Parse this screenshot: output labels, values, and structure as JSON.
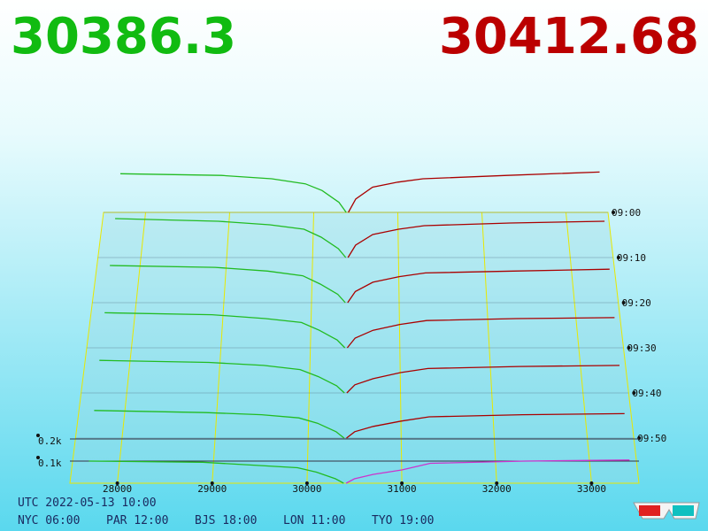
{
  "header": {
    "bid_price": "30386.3",
    "ask_price": "30412.68"
  },
  "chart_data": {
    "type": "depth3d",
    "xlim": [
      27500,
      33500
    ],
    "xticks": [
      28000,
      29000,
      30000,
      31000,
      32000,
      33000
    ],
    "tlim": [
      0,
      60
    ],
    "tticks": [
      {
        "value": 0,
        "label": "09:00"
      },
      {
        "value": 10,
        "label": "09:10"
      },
      {
        "value": 20,
        "label": "09:20"
      },
      {
        "value": 30,
        "label": "09:30"
      },
      {
        "value": 40,
        "label": "09:40"
      },
      {
        "value": 50,
        "label": "09:50"
      }
    ],
    "zticks": [
      {
        "value": 100,
        "label": "0.1k"
      },
      {
        "value": 200,
        "label": "0.2k"
      }
    ],
    "series": [
      {
        "time": 0,
        "color": "#22bb22",
        "x": [
          27700,
          28900,
          29500,
          29900,
          30100,
          30300,
          30386
        ],
        "values": [
          230,
          220,
          200,
          170,
          130,
          60,
          0
        ]
      },
      {
        "time": 10,
        "color": "#22bb22",
        "x": [
          27700,
          28900,
          29500,
          29900,
          30100,
          30300,
          30386
        ],
        "values": [
          220,
          205,
          185,
          160,
          115,
          50,
          0
        ]
      },
      {
        "time": 20,
        "color": "#22bb22",
        "x": [
          27700,
          28900,
          29500,
          29900,
          30100,
          30300,
          30386
        ],
        "values": [
          200,
          190,
          170,
          145,
          100,
          45,
          0
        ]
      },
      {
        "time": 30,
        "color": "#22bb22",
        "x": [
          27700,
          28900,
          29500,
          29900,
          30100,
          30300,
          30386
        ],
        "values": [
          180,
          170,
          150,
          130,
          90,
          40,
          0
        ]
      },
      {
        "time": 40,
        "color": "#22bb22",
        "x": [
          27700,
          28900,
          29500,
          29900,
          30100,
          30300,
          30386
        ],
        "values": [
          160,
          150,
          135,
          115,
          80,
          35,
          0
        ]
      },
      {
        "time": 50,
        "color": "#22bb22",
        "x": [
          27700,
          28900,
          29500,
          29900,
          30100,
          30300,
          30386
        ],
        "values": [
          130,
          120,
          110,
          95,
          70,
          30,
          0
        ]
      },
      {
        "time": 60,
        "color": "#22bb22",
        "x": [
          27700,
          28900,
          29500,
          29900,
          30100,
          30300,
          30386
        ],
        "values": [
          100,
          95,
          80,
          70,
          50,
          20,
          0
        ]
      },
      {
        "time": 0,
        "color": "#aa0000",
        "x": [
          30412,
          30500,
          30700,
          31000,
          31300,
          32300,
          33400
        ],
        "values": [
          0,
          80,
          150,
          180,
          200,
          220,
          240
        ]
      },
      {
        "time": 10,
        "color": "#aa0000",
        "x": [
          30412,
          30500,
          30700,
          31000,
          31300,
          32300,
          33400
        ],
        "values": [
          0,
          70,
          130,
          160,
          180,
          195,
          205
        ]
      },
      {
        "time": 20,
        "color": "#aa0000",
        "x": [
          30412,
          30500,
          30700,
          31000,
          31300,
          32300,
          33400
        ],
        "values": [
          0,
          60,
          110,
          140,
          160,
          170,
          180
        ]
      },
      {
        "time": 30,
        "color": "#aa0000",
        "x": [
          30412,
          30500,
          30700,
          31000,
          31300,
          32300,
          33400
        ],
        "values": [
          0,
          50,
          90,
          120,
          140,
          150,
          155
        ]
      },
      {
        "time": 40,
        "color": "#aa0000",
        "x": [
          30412,
          30500,
          30700,
          31000,
          31300,
          32300,
          33400
        ],
        "values": [
          0,
          40,
          70,
          100,
          120,
          130,
          135
        ]
      },
      {
        "time": 50,
        "color": "#aa0000",
        "x": [
          30412,
          30500,
          30700,
          31000,
          31300,
          32300,
          33400
        ],
        "values": [
          0,
          30,
          55,
          80,
          100,
          110,
          115
        ]
      },
      {
        "time": 60,
        "color": "#cc33cc",
        "x": [
          30412,
          30500,
          30700,
          31000,
          31300,
          32300,
          33400
        ],
        "values": [
          0,
          20,
          40,
          60,
          90,
          100,
          105
        ]
      }
    ]
  },
  "footer": {
    "utc": "UTC 2022-05-13 10:00",
    "zones": [
      "NYC 06:00",
      "PAR 12:00",
      "BJS 18:00",
      "LON 11:00",
      "TYO 19:00"
    ]
  }
}
